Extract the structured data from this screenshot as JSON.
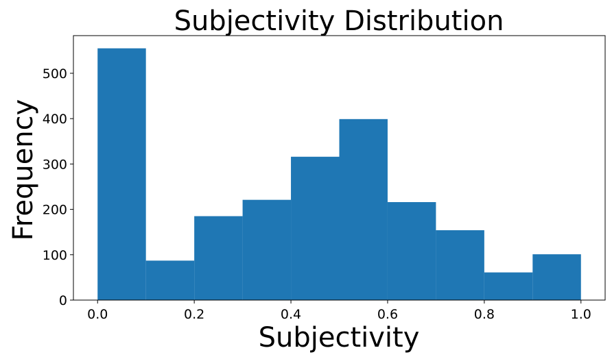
{
  "chart_data": {
    "type": "bar",
    "title": "Subjectivity Distribution",
    "xlabel": "Subjectivity",
    "ylabel": "Frequency",
    "bin_edges": [
      0.0,
      0.1,
      0.2,
      0.3,
      0.4,
      0.5,
      0.6,
      0.7,
      0.8,
      0.9,
      1.0
    ],
    "values": [
      555,
      87,
      185,
      221,
      316,
      399,
      216,
      154,
      61,
      101
    ],
    "xlim": [
      -0.05,
      1.05
    ],
    "ylim": [
      0,
      583
    ],
    "x_ticks": [
      "0.0",
      "0.2",
      "0.4",
      "0.6",
      "0.8",
      "1.0"
    ],
    "y_ticks": [
      "0",
      "100",
      "200",
      "300",
      "400",
      "500"
    ],
    "bar_color": "#1f77b4",
    "grid": false,
    "legend": "none"
  }
}
